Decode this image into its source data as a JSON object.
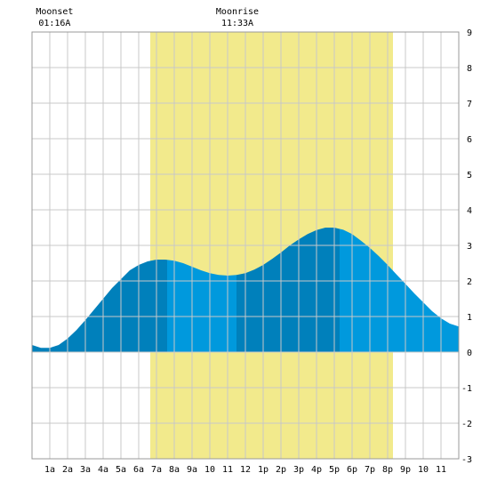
{
  "chart_data": {
    "type": "area",
    "title": "",
    "xlabel": "",
    "ylabel": "",
    "x_ticks": [
      "1a",
      "2a",
      "3a",
      "4a",
      "5a",
      "6a",
      "7a",
      "8a",
      "9a",
      "10",
      "11",
      "12",
      "1p",
      "2p",
      "3p",
      "4p",
      "5p",
      "6p",
      "7p",
      "8p",
      "9p",
      "10",
      "11"
    ],
    "y_ticks": [
      "9",
      "8",
      "7",
      "6",
      "5",
      "4",
      "3",
      "2",
      "1",
      "0",
      "-1",
      "-2",
      "-3"
    ],
    "xlim": [
      0,
      24
    ],
    "ylim": [
      -3,
      9
    ],
    "grid": true,
    "daylight": {
      "start_hour": 6.65,
      "end_hour": 20.3,
      "color": "#f2ea8c"
    },
    "moon_events": [
      {
        "label": "Moonset",
        "time": "01:16A",
        "hour": 1.27
      },
      {
        "label": "Moonrise",
        "time": "11:33A",
        "hour": 11.55
      }
    ],
    "tide_shading": [
      {
        "start_hour": 0,
        "end_hour": 7.6,
        "color": "#0080bb"
      },
      {
        "start_hour": 7.6,
        "end_hour": 11.5,
        "color": "#0099dd"
      },
      {
        "start_hour": 11.5,
        "end_hour": 17.3,
        "color": "#0080bb"
      },
      {
        "start_hour": 17.3,
        "end_hour": 24,
        "color": "#0099dd"
      }
    ],
    "series": [
      {
        "x": [
          0,
          0.5,
          1,
          1.5,
          2,
          2.5,
          3,
          3.5,
          4,
          4.5,
          5,
          5.5,
          6,
          6.5,
          7,
          7.5,
          8,
          8.5,
          9,
          9.5,
          10,
          10.5,
          11,
          11.5,
          12,
          12.5,
          13,
          13.5,
          14,
          14.5,
          15,
          15.5,
          16,
          16.5,
          17,
          17.5,
          18,
          18.5,
          19,
          19.5,
          20,
          20.5,
          21,
          21.5,
          22,
          22.5,
          23,
          23.5,
          24
        ],
        "y": [
          0.2,
          0.12,
          0.12,
          0.2,
          0.38,
          0.62,
          0.9,
          1.2,
          1.5,
          1.8,
          2.05,
          2.3,
          2.45,
          2.55,
          2.6,
          2.6,
          2.57,
          2.5,
          2.4,
          2.3,
          2.22,
          2.17,
          2.15,
          2.17,
          2.22,
          2.32,
          2.45,
          2.62,
          2.8,
          3.0,
          3.17,
          3.32,
          3.43,
          3.5,
          3.5,
          3.44,
          3.32,
          3.13,
          2.93,
          2.7,
          2.45,
          2.18,
          1.92,
          1.65,
          1.4,
          1.15,
          0.95,
          0.8,
          0.72
        ]
      }
    ]
  }
}
